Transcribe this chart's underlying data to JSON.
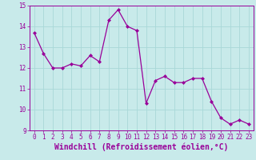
{
  "x": [
    0,
    1,
    2,
    3,
    4,
    5,
    6,
    7,
    8,
    9,
    10,
    11,
    12,
    13,
    14,
    15,
    16,
    17,
    18,
    19,
    20,
    21,
    22,
    23
  ],
  "y": [
    13.7,
    12.7,
    12.0,
    12.0,
    12.2,
    12.1,
    12.6,
    12.3,
    14.3,
    14.8,
    14.0,
    13.8,
    10.3,
    11.4,
    11.6,
    11.3,
    11.3,
    11.5,
    11.5,
    10.4,
    9.6,
    9.3,
    9.5,
    9.3
  ],
  "line_color": "#990099",
  "marker_color": "#990099",
  "bg_color": "#c8eaea",
  "grid_color": "#a8d8d8",
  "xlabel": "Windchill (Refroidissement éolien,°C)",
  "xlabel_color": "#990099",
  "ylim": [
    9,
    15
  ],
  "xlim": [
    -0.5,
    23.5
  ],
  "yticks": [
    9,
    10,
    11,
    12,
    13,
    14,
    15
  ],
  "xticks": [
    0,
    1,
    2,
    3,
    4,
    5,
    6,
    7,
    8,
    9,
    10,
    11,
    12,
    13,
    14,
    15,
    16,
    17,
    18,
    19,
    20,
    21,
    22,
    23
  ],
  "tick_color": "#990099",
  "tick_fontsize": 5.5,
  "xlabel_fontsize": 7.0,
  "spine_color": "#990099"
}
